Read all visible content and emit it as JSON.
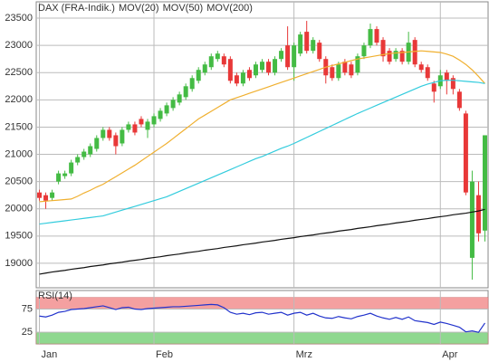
{
  "chart_data": [
    {
      "type": "candlestick",
      "legend": "top-left",
      "grid": true,
      "ylim": [
        18550,
        23800
      ],
      "yticks": [
        19000,
        19500,
        20000,
        20500,
        21000,
        21500,
        22000,
        22500,
        23000,
        23500
      ],
      "up_color": "#44bb44",
      "down_color": "#e83838",
      "series": [
        {
          "name": "DAX (FRA-Indik.)",
          "color": "#e03030",
          "open": [
            20300,
            20250,
            20200,
            20500,
            20600,
            20650,
            20850,
            20950,
            21000,
            21100,
            21300,
            21450,
            21350,
            21200,
            21450,
            21550,
            21650,
            21450,
            21550,
            21650,
            21750,
            21850,
            21950,
            22050,
            22200,
            22350,
            22500,
            22600,
            22750,
            22800,
            22750,
            22450,
            22300,
            22550,
            22450,
            22550,
            22700,
            22500,
            22750,
            23000,
            22600,
            22850,
            23250,
            22900,
            23050,
            22750,
            22600,
            22400,
            22700,
            22650,
            22500,
            22800,
            23000,
            23300,
            23100,
            22900,
            22750,
            22900,
            22700,
            23100,
            22650,
            22600,
            22300,
            22250,
            22500,
            22400,
            22150,
            21750,
            19100,
            20250,
            19600
          ],
          "high": [
            20350,
            20300,
            20350,
            20700,
            20700,
            20900,
            21000,
            21100,
            21200,
            21350,
            21500,
            21500,
            21400,
            21500,
            21600,
            21600,
            21700,
            21650,
            21750,
            21850,
            21950,
            22050,
            22150,
            22300,
            22450,
            22600,
            22700,
            22850,
            22900,
            22850,
            22800,
            22500,
            22550,
            22600,
            22700,
            22750,
            22750,
            22800,
            22950,
            23350,
            23050,
            23250,
            23450,
            23150,
            23100,
            22800,
            22650,
            22700,
            22750,
            22700,
            22850,
            23050,
            23400,
            23350,
            23150,
            22950,
            22950,
            22950,
            23250,
            23150,
            22700,
            22650,
            22350,
            22550,
            22550,
            22450,
            22200,
            21800,
            20700,
            20500,
            21350
          ],
          "low": [
            20150,
            20000,
            20150,
            20450,
            20550,
            20600,
            20800,
            20900,
            20950,
            21050,
            21250,
            21250,
            21000,
            21150,
            21400,
            21350,
            21500,
            21300,
            21500,
            21600,
            21700,
            21800,
            21900,
            22000,
            22150,
            22300,
            22450,
            22550,
            22700,
            22600,
            22300,
            22250,
            22250,
            22350,
            22400,
            22500,
            22450,
            22450,
            22700,
            22550,
            22350,
            22800,
            22850,
            22850,
            22700,
            22300,
            22350,
            22350,
            22450,
            22400,
            22450,
            22750,
            22950,
            23000,
            22700,
            22650,
            22700,
            22650,
            22650,
            22600,
            22500,
            22350,
            21950,
            22200,
            22100,
            22100,
            21800,
            20250,
            18700,
            19400,
            19400
          ],
          "close": [
            20200,
            20150,
            20300,
            20650,
            20650,
            20850,
            20950,
            21050,
            21150,
            21300,
            21450,
            21300,
            21150,
            21450,
            21550,
            21400,
            21550,
            21600,
            21700,
            21800,
            21900,
            22000,
            22100,
            22250,
            22400,
            22550,
            22650,
            22800,
            22850,
            22650,
            22350,
            22300,
            22500,
            22400,
            22650,
            22700,
            22500,
            22750,
            22900,
            22600,
            23000,
            23200,
            22900,
            23100,
            22750,
            22450,
            22400,
            22650,
            22500,
            22450,
            22800,
            23000,
            23300,
            23050,
            22800,
            22700,
            22900,
            22700,
            23050,
            22650,
            22550,
            22400,
            22150,
            22450,
            22350,
            22200,
            21850,
            20300,
            20500,
            19550,
            21350
          ]
        },
        {
          "name": "MOV(20)",
          "color": "#f0b030",
          "values": [
            20130,
            20140,
            20150,
            20160,
            20170,
            20180,
            20230,
            20290,
            20340,
            20400,
            20450,
            20520,
            20590,
            20660,
            20730,
            20800,
            20880,
            20960,
            21040,
            21120,
            21200,
            21290,
            21380,
            21470,
            21560,
            21650,
            21720,
            21790,
            21860,
            21930,
            22000,
            22040,
            22080,
            22120,
            22160,
            22200,
            22240,
            22280,
            22320,
            22360,
            22400,
            22440,
            22480,
            22520,
            22560,
            22600,
            22630,
            22660,
            22690,
            22720,
            22750,
            22770,
            22790,
            22810,
            22830,
            22850,
            22860,
            22870,
            22880,
            22890,
            22900,
            22890,
            22880,
            22870,
            22840,
            22800,
            22730,
            22650,
            22550,
            22430,
            22300
          ]
        },
        {
          "name": "MOV(50)",
          "color": "#33ccdd",
          "values": [
            19720,
            19735,
            19750,
            19765,
            19780,
            19795,
            19810,
            19825,
            19840,
            19855,
            19870,
            19905,
            19940,
            19975,
            20010,
            20045,
            20080,
            20115,
            20150,
            20185,
            20220,
            20270,
            20320,
            20370,
            20420,
            20470,
            20520,
            20570,
            20620,
            20670,
            20720,
            20770,
            20820,
            20870,
            20920,
            20960,
            21010,
            21060,
            21110,
            21150,
            21200,
            21255,
            21310,
            21365,
            21420,
            21475,
            21530,
            21585,
            21640,
            21695,
            21750,
            21800,
            21850,
            21900,
            21950,
            22000,
            22050,
            22100,
            22150,
            22200,
            22250,
            22290,
            22320,
            22350,
            22360,
            22360,
            22350,
            22340,
            22330,
            22320,
            22300
          ]
        },
        {
          "name": "MOV(200)",
          "color": "#111111",
          "values": [
            18800,
            18820,
            18840,
            18855,
            18870,
            18890,
            18905,
            18920,
            18940,
            18955,
            18970,
            18990,
            19005,
            19020,
            19040,
            19055,
            19070,
            19090,
            19105,
            19120,
            19140,
            19155,
            19170,
            19190,
            19205,
            19220,
            19240,
            19255,
            19270,
            19290,
            19305,
            19320,
            19340,
            19355,
            19370,
            19390,
            19405,
            19420,
            19440,
            19455,
            19470,
            19490,
            19505,
            19520,
            19540,
            19555,
            19570,
            19590,
            19605,
            19620,
            19640,
            19655,
            19670,
            19690,
            19705,
            19720,
            19740,
            19755,
            19770,
            19790,
            19805,
            19820,
            19840,
            19855,
            19870,
            19890,
            19905,
            19920,
            19940,
            19960,
            19990
          ]
        }
      ]
    },
    {
      "type": "line",
      "title": "RSI(14)",
      "color": "#2233cc",
      "grid": true,
      "ylim": [
        0,
        115
      ],
      "yticks": [
        25,
        75
      ],
      "bands": [
        {
          "from": 75,
          "to": 100,
          "color": "#f4a0a0"
        },
        {
          "from": 0,
          "to": 25,
          "color": "#8fd88f"
        }
      ],
      "categories": [
        "Jan",
        null,
        null,
        null,
        null,
        null,
        null,
        null,
        null,
        null,
        null,
        null,
        null,
        null,
        null,
        null,
        null,
        null,
        "Feb",
        null,
        null,
        null,
        null,
        null,
        null,
        null,
        null,
        null,
        null,
        null,
        null,
        null,
        null,
        null,
        null,
        null,
        null,
        null,
        null,
        null,
        "Mrz",
        null,
        null,
        null,
        null,
        null,
        null,
        null,
        null,
        null,
        null,
        null,
        null,
        null,
        null,
        null,
        null,
        null,
        null,
        null,
        null,
        null,
        null,
        "Apr",
        null,
        null,
        null,
        null,
        null,
        null,
        null
      ],
      "values": [
        60,
        58,
        62,
        68,
        70,
        74,
        75,
        76,
        78,
        80,
        82,
        78,
        74,
        78,
        79,
        75,
        74,
        76,
        77,
        78,
        79,
        80,
        80,
        81,
        82,
        83,
        84,
        85,
        84,
        78,
        68,
        64,
        66,
        63,
        67,
        68,
        64,
        66,
        68,
        62,
        66,
        68,
        62,
        66,
        60,
        56,
        55,
        59,
        56,
        54,
        59,
        62,
        66,
        60,
        56,
        53,
        57,
        53,
        58,
        50,
        48,
        46,
        42,
        47,
        44,
        40,
        36,
        26,
        28,
        25,
        45
      ]
    }
  ]
}
